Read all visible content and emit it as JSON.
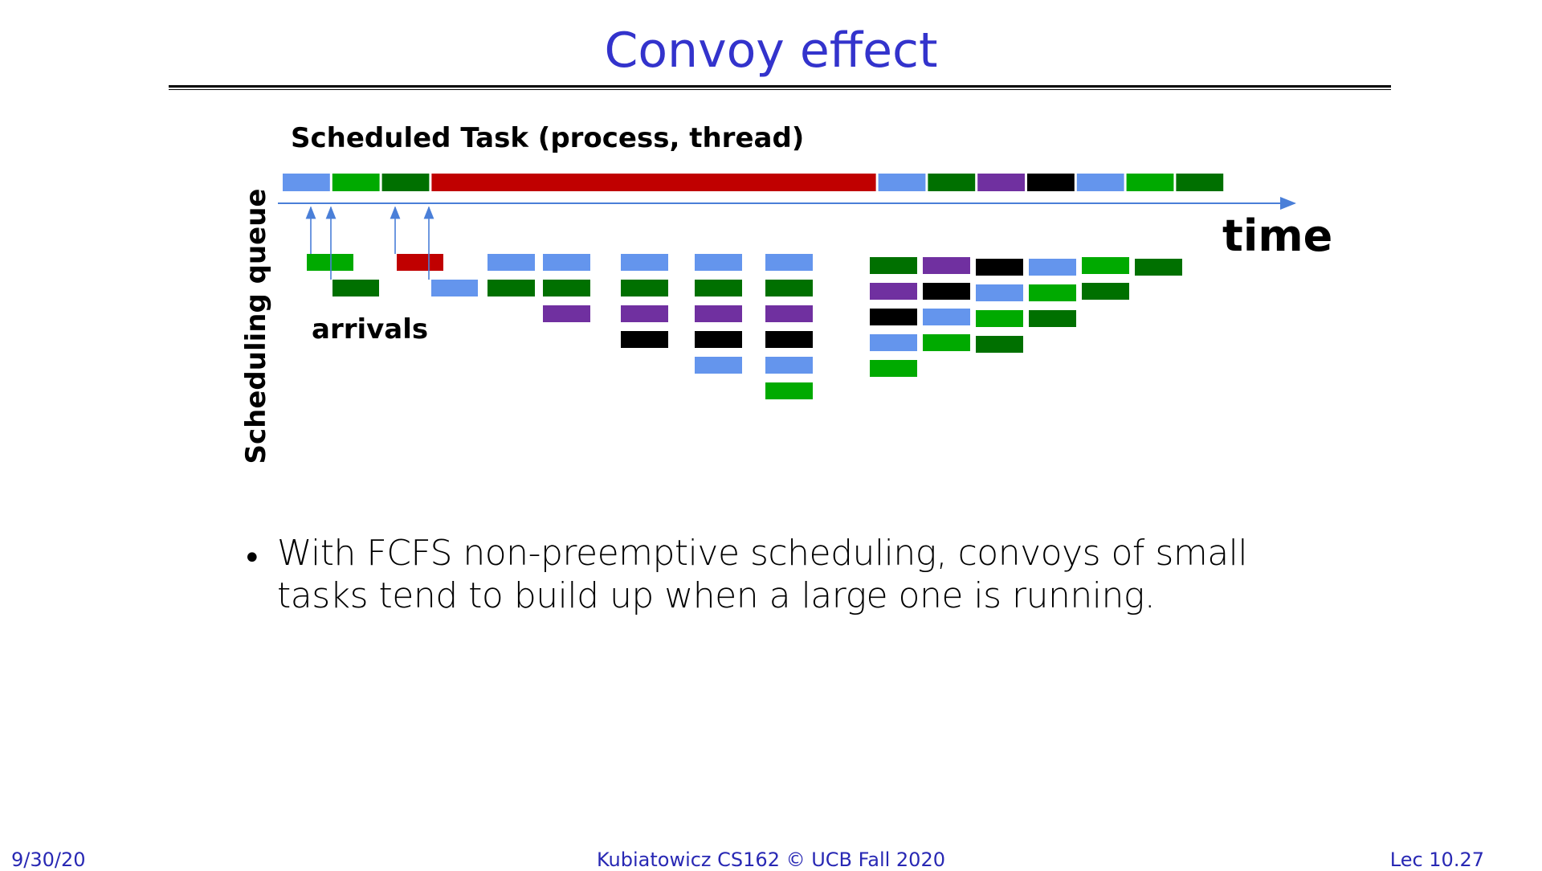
{
  "slide": {
    "title": "Convoy effect",
    "bullet": "With FCFS non-preemptive scheduling, convoys of small tasks tend to build up when a large one is running."
  },
  "diagram": {
    "scheduled_label": "Scheduled Task (process, thread)",
    "queue_label": "Scheduling queue",
    "arrivals_label": "arrivals",
    "time_label": "time",
    "colors": {
      "blue": "#6495ed",
      "green": "#00aa00",
      "darkgreen": "#007000",
      "red": "#c00000",
      "purple": "#7030a0",
      "black": "#000000"
    },
    "scheduled_sequence": [
      {
        "color": "blue",
        "duration": 1
      },
      {
        "color": "green",
        "duration": 1
      },
      {
        "color": "darkgreen",
        "duration": 1
      },
      {
        "color": "red",
        "duration": 9
      },
      {
        "color": "blue",
        "duration": 1
      },
      {
        "color": "darkgreen",
        "duration": 1
      },
      {
        "color": "purple",
        "duration": 1
      },
      {
        "color": "black",
        "duration": 1
      },
      {
        "color": "blue",
        "duration": 1
      },
      {
        "color": "green",
        "duration": 1
      },
      {
        "color": "darkgreen",
        "duration": 1
      }
    ],
    "queue_snapshots": [
      [
        "blue",
        "darkgreen"
      ],
      [
        "blue",
        "darkgreen",
        "purple"
      ],
      [
        "blue",
        "darkgreen",
        "purple",
        "black"
      ],
      [
        "blue",
        "darkgreen",
        "purple",
        "black",
        "blue"
      ],
      [
        "blue",
        "darkgreen",
        "purple",
        "black",
        "blue",
        "green"
      ],
      [
        "darkgreen",
        "purple",
        "black",
        "blue",
        "green"
      ],
      [
        "purple",
        "black",
        "blue",
        "green"
      ],
      [
        "black",
        "blue",
        "green",
        "darkgreen"
      ],
      [
        "blue",
        "green",
        "darkgreen"
      ],
      [
        "green",
        "darkgreen"
      ],
      [
        "darkgreen"
      ]
    ],
    "arrivals": [
      "green",
      "darkgreen",
      "red",
      "blue"
    ]
  },
  "footer": {
    "date": "9/30/20",
    "course": "Kubiatowicz CS162 © UCB Fall 2020",
    "lecture": "Lec 10.27"
  }
}
